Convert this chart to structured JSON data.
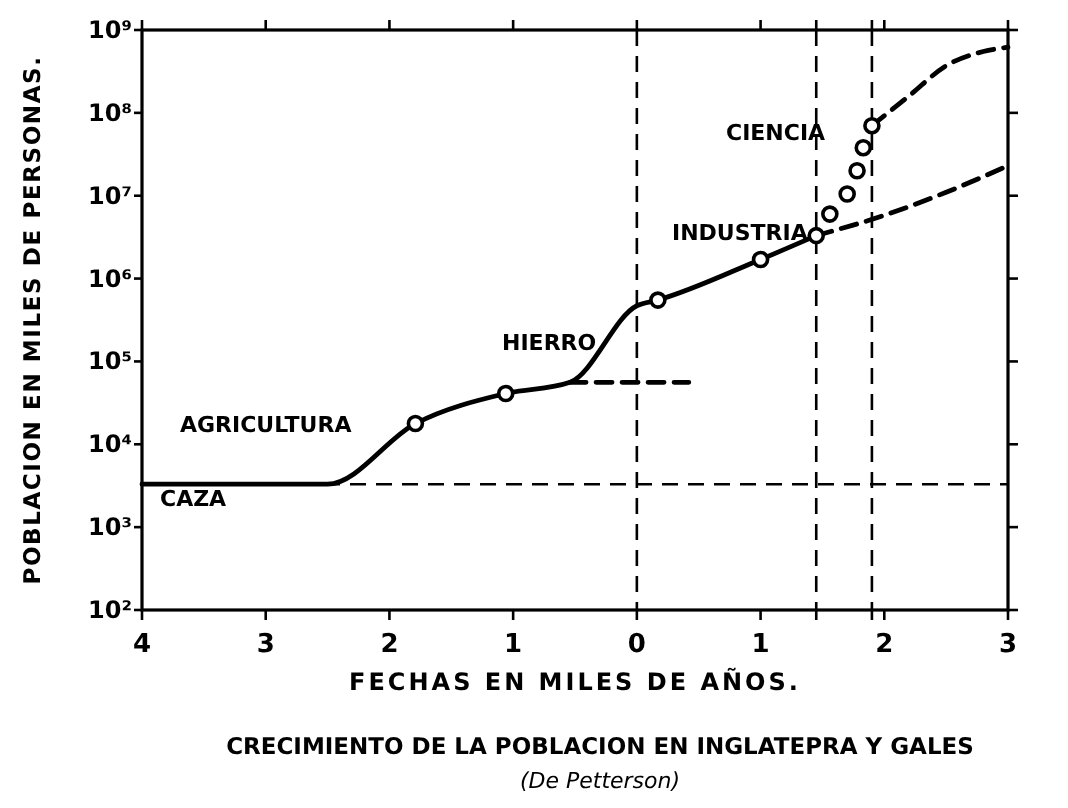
{
  "chart_data": {
    "type": "line",
    "title": "CRECIMIENTO DE LA POBLACION EN INGLATEPRA Y GALES",
    "subtitle": "(De Petterson)",
    "xlabel": "FECHAS EN MILES DE AÑOS.",
    "ylabel": "POBLACION EN MILES DE PERSONAS.",
    "log": "y",
    "grid": false,
    "xlim": [
      -4,
      3
    ],
    "xticks": [
      {
        "value": -4,
        "label": "4"
      },
      {
        "value": -3,
        "label": "3"
      },
      {
        "value": -2,
        "label": "2"
      },
      {
        "value": -1,
        "label": "1"
      },
      0,
      1,
      {
        "value": 1.45,
        "label": null
      },
      {
        "value": 1.9,
        "label": null
      },
      2,
      3
    ],
    "ylim": [
      100,
      1000000000
    ],
    "yticks": [
      {
        "value": 100,
        "label": "10²"
      },
      {
        "value": 1000,
        "label": "10³"
      },
      {
        "value": 10000,
        "label": "10⁴"
      },
      {
        "value": 100000,
        "label": "10⁵"
      },
      {
        "value": 1000000,
        "label": "10⁶"
      },
      {
        "value": 10000000,
        "label": "10⁷"
      },
      {
        "value": 100000000,
        "label": "10⁸"
      },
      {
        "value": 1000000000,
        "label": "10⁹"
      }
    ],
    "series": [
      {
        "color": "#000000",
        "line_style": "solid",
        "marker": "none",
        "x": [
          -4,
          -2.5,
          -1.79,
          -1.06,
          -0.54,
          0,
          0.17,
          1.0,
          1.45
        ],
        "values": [
          3300,
          3300,
          17800,
          41000,
          56000,
          470000,
          550000,
          1700000,
          3300000
        ]
      },
      {
        "type": "line",
        "color": "#000000",
        "line_style": "dashed",
        "marker": "none",
        "x": [
          -0.54,
          0.42
        ],
        "values": [
          56000,
          56000
        ]
      },
      {
        "type": "line",
        "color": "#000000",
        "line_style": "dashed",
        "marker": "none",
        "x": [
          1.45,
          2.0,
          2.5,
          3
        ],
        "values": [
          3300000,
          5800000,
          11000000,
          23000000
        ]
      },
      {
        "type": "line",
        "color": "#000000",
        "line_style": "dashed",
        "marker": "none",
        "x": [
          1.9,
          2.2,
          2.5,
          2.8,
          3
        ],
        "values": [
          70000000,
          160000000,
          370000000,
          550000000,
          620000000
        ]
      },
      {
        "type": "scatter",
        "color": "#000000",
        "marker": "circle",
        "x": [
          -1.79,
          -1.06,
          0.17,
          1.0,
          1.45,
          1.56,
          1.7,
          1.78,
          1.83,
          1.9
        ],
        "values": [
          17800,
          41000,
          550000,
          1700000,
          3300000,
          6000000,
          10500000,
          20000000,
          38000000,
          70000000
        ]
      }
    ],
    "ref_lines": [
      {
        "axis": "y",
        "value": 3300,
        "line_style": "dashed",
        "color": "#000000"
      },
      {
        "axis": "x",
        "value": 0,
        "line_style": "dashed",
        "color": "#000000"
      },
      {
        "axis": "x",
        "value": 1.45,
        "line_style": "dashed",
        "color": "#000000"
      },
      {
        "axis": "x",
        "value": 1.9,
        "line_style": "dashed",
        "color": "#000000"
      }
    ],
    "annotations": [
      "AGRICULTURA",
      "CAZA",
      "HIERRO",
      "INDUSTRIA",
      "CIENCIA"
    ]
  }
}
